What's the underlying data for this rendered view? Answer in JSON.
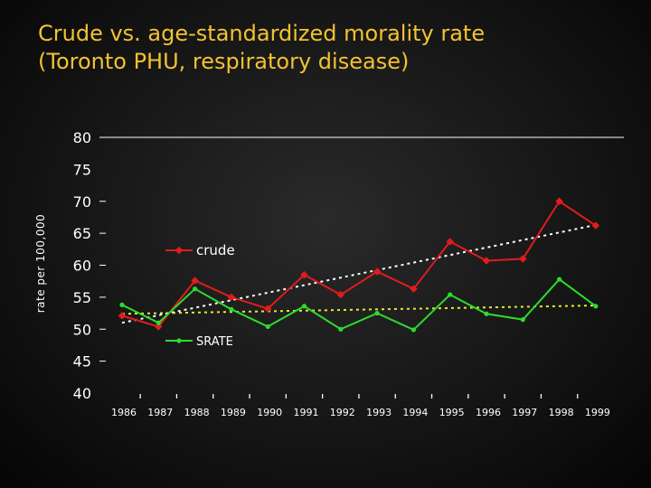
{
  "title": {
    "line1": "Crude vs. age-standardized morality rate",
    "line2": "(Toronto PHU, respiratory disease)"
  },
  "chart_data": {
    "type": "line",
    "ylabel": "rate per 100,000",
    "xlabel": "",
    "ylim": [
      40,
      80
    ],
    "yticks": [
      40,
      45,
      50,
      55,
      60,
      65,
      70,
      75,
      80
    ],
    "x": [
      "1986",
      "1987",
      "1988",
      "1989",
      "1990",
      "1991",
      "1992",
      "1993",
      "1994",
      "1995",
      "1996",
      "1997",
      "1998",
      "1999"
    ],
    "series": [
      {
        "name": "crude",
        "color": "#e01c1c",
        "values": [
          52.1,
          50.4,
          57.6,
          55.0,
          53.2,
          58.5,
          55.4,
          59.0,
          56.3,
          63.7,
          60.7,
          61.0,
          70.0,
          66.2
        ],
        "trend": [
          51.0,
          66.3
        ]
      },
      {
        "name": "SRATE",
        "color": "#2ddc2d",
        "values": [
          53.8,
          51.0,
          56.3,
          53.1,
          50.4,
          53.6,
          50.0,
          52.5,
          49.9,
          55.4,
          52.4,
          51.5,
          57.8,
          53.6
        ],
        "trend": [
          52.4,
          53.7
        ]
      }
    ],
    "grid": false,
    "legend": "inline"
  }
}
